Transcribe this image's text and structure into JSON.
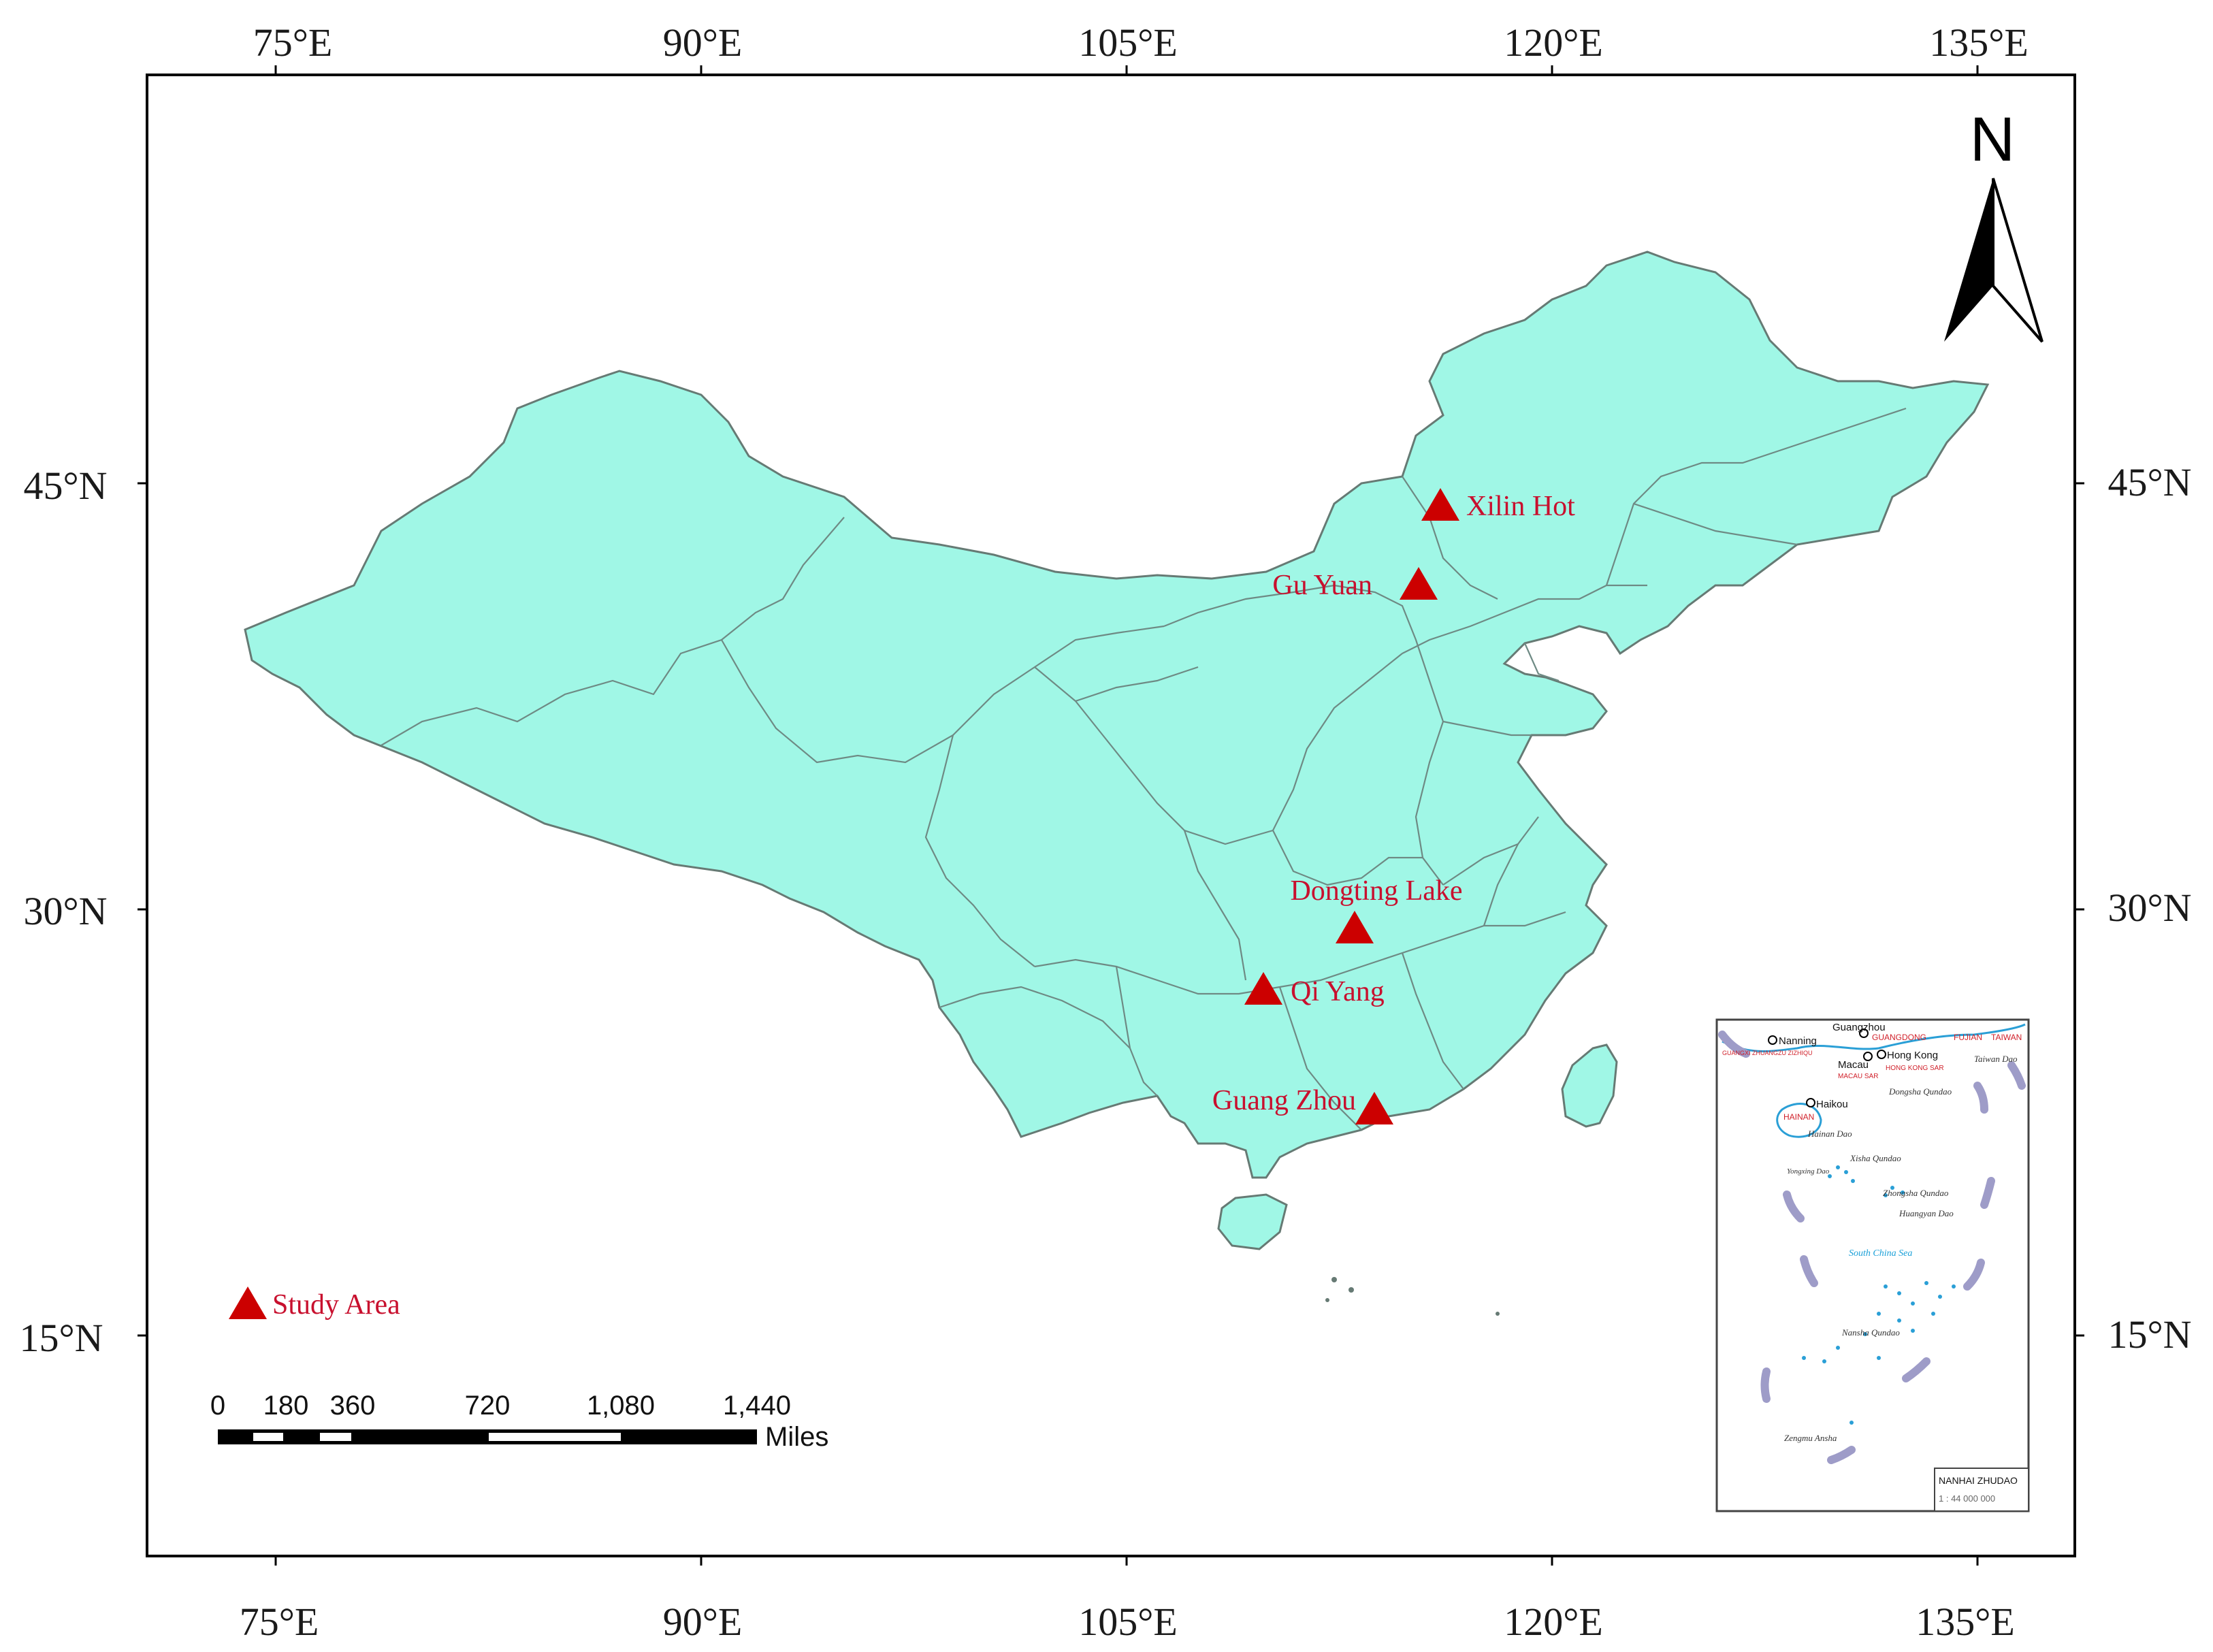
{
  "map": {
    "lon_ticks": [
      "75°E",
      "90°E",
      "105°E",
      "120°E",
      "135°E"
    ],
    "lat_ticks_left": [
      "45°N",
      "30°N",
      "15°N"
    ],
    "lat_ticks_right": [
      "45°N",
      "30°N",
      "15°N"
    ],
    "land_color": "#a0f7e6",
    "marker_color": "#cc0000",
    "sites": [
      {
        "name": "Xilin Hot"
      },
      {
        "name": "Gu Yuan"
      },
      {
        "name": "Dongting Lake"
      },
      {
        "name": "Qi Yang"
      },
      {
        "name": "Guang Zhou"
      }
    ],
    "legend": {
      "label": "Study Area"
    },
    "north_arrow": {
      "label": "N"
    },
    "scale_bar": {
      "ticks": [
        "0",
        "180",
        "360",
        "720",
        "1,080",
        "1,440"
      ],
      "unit": "Miles"
    }
  },
  "inset": {
    "cities": [
      "Guangzhou",
      "Nanning",
      "Macau",
      "Hong Kong",
      "Haikou"
    ],
    "regions": [
      "GUANGDONG",
      "FUJIAN",
      "TAIWAN",
      "GUANGXI ZHUANGZU ZIZHIQU",
      "MACAU SAR",
      "HONG KONG SAR",
      "HAINAN"
    ],
    "islands": [
      "Taiwan Dao",
      "Dongsha Qundao",
      "Hainan Dao",
      "Xisha Qundao",
      "Yongxing Dao",
      "Zhongsha Qundao",
      "Huangyan Dao",
      "Nansha Qundao",
      "Zengmu Ansha"
    ],
    "sea": "South China Sea",
    "title": "NANHAI ZHUDAO",
    "scale": "1 : 44 000 000"
  }
}
